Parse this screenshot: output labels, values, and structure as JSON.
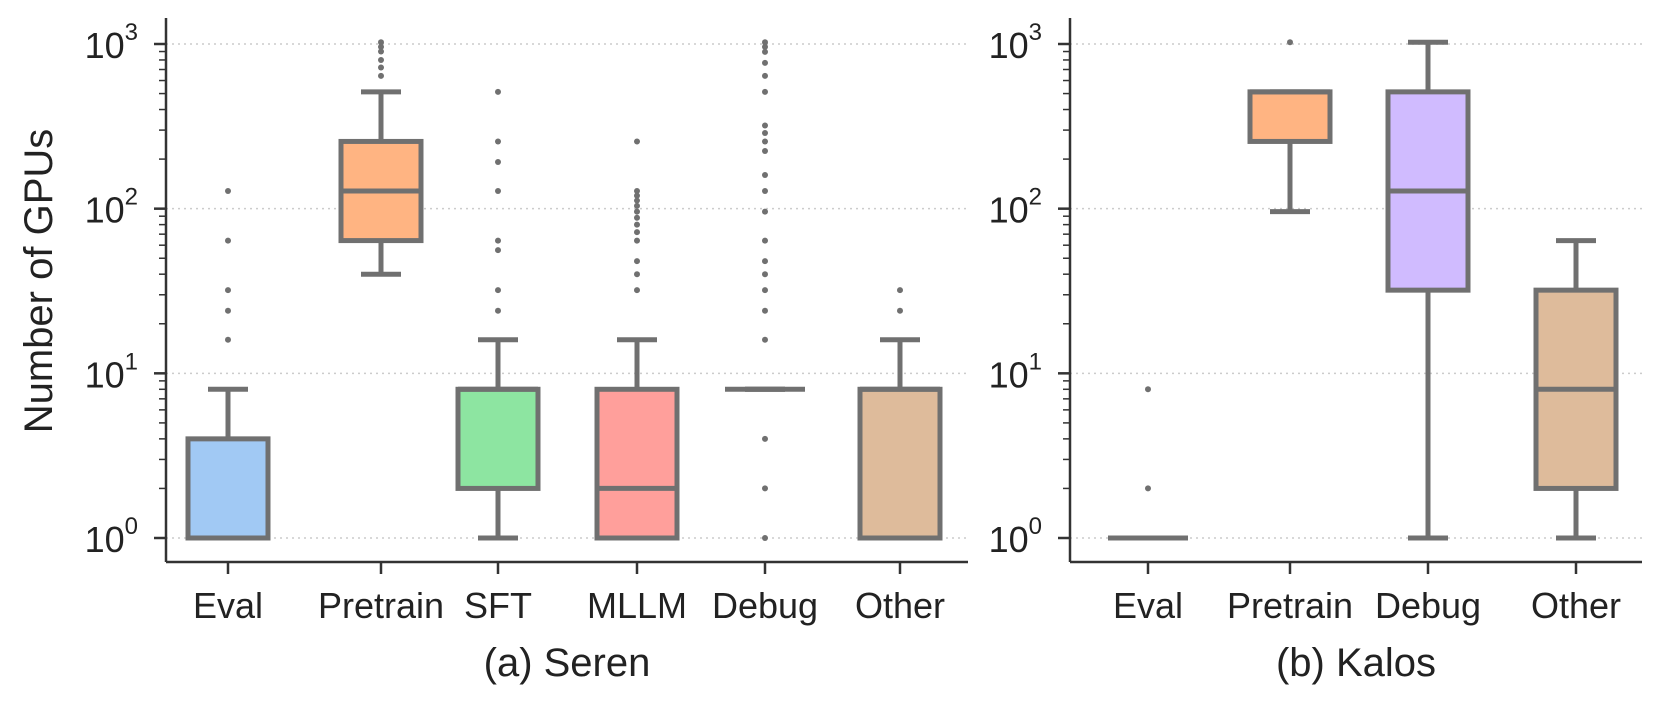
{
  "figure": {
    "ylabel": "Number of GPUs",
    "tick_labels": [
      {
        "base": "10",
        "exp": "0"
      },
      {
        "base": "10",
        "exp": "1"
      },
      {
        "base": "10",
        "exp": "2"
      },
      {
        "base": "10",
        "exp": "3"
      }
    ]
  },
  "chart_data": [
    {
      "type": "box",
      "title": "(a) Seren",
      "yscale": "log",
      "ylim": [
        0.8,
        1400
      ],
      "grid": "y-dotted",
      "ylabel": "Number of GPUs",
      "boxes": [
        {
          "category": "Eval",
          "color": "#a1c9f4",
          "q1": 1,
          "median": 1,
          "q3": 4,
          "whisker_low": 1,
          "whisker_high": 8,
          "outliers": [
            16,
            24,
            32,
            64,
            128
          ]
        },
        {
          "category": "Pretrain",
          "color": "#ffb482",
          "q1": 64,
          "median": 128,
          "q3": 256,
          "whisker_low": 40,
          "whisker_high": 512,
          "outliers": [
            640,
            720,
            800,
            900,
            960,
            1024
          ]
        },
        {
          "category": "SFT",
          "color": "#8de5a1",
          "q1": 2,
          "median": 8,
          "q3": 8,
          "whisker_low": 1,
          "whisker_high": 16,
          "outliers": [
            24,
            32,
            56,
            64,
            128,
            192,
            256,
            512
          ]
        },
        {
          "category": "MLLM",
          "color": "#ff9f9b",
          "q1": 1,
          "median": 2,
          "q3": 8,
          "whisker_low": 1,
          "whisker_high": 16,
          "outliers": [
            32,
            40,
            48,
            64,
            72,
            80,
            88,
            96,
            104,
            112,
            120,
            128,
            256
          ]
        },
        {
          "category": "Debug",
          "color": "#d0bbff",
          "q1": 8,
          "median": 8,
          "q3": 8,
          "whisker_low": 8,
          "whisker_high": 8,
          "outliers": [
            1,
            2,
            4,
            16,
            24,
            32,
            40,
            48,
            64,
            96,
            128,
            160,
            224,
            256,
            288,
            320,
            512,
            640,
            768,
            896,
            960,
            1024
          ]
        },
        {
          "category": "Other",
          "color": "#debb9b",
          "q1": 1,
          "median": 8,
          "q3": 8,
          "whisker_low": 1,
          "whisker_high": 16,
          "outliers": [
            24,
            32
          ]
        }
      ]
    },
    {
      "type": "box",
      "title": "(b) Kalos",
      "yscale": "log",
      "ylim": [
        0.8,
        1400
      ],
      "grid": "y-dotted",
      "boxes": [
        {
          "category": "Eval",
          "color": "#a1c9f4",
          "q1": 1,
          "median": 1,
          "q3": 1,
          "whisker_low": 1,
          "whisker_high": 1,
          "outliers": [
            2,
            8
          ]
        },
        {
          "category": "Pretrain",
          "color": "#ffb482",
          "q1": 256,
          "median": 512,
          "q3": 512,
          "whisker_low": 96,
          "whisker_high": 512,
          "outliers": [
            1024
          ]
        },
        {
          "category": "Debug",
          "color": "#d0bbff",
          "q1": 32,
          "median": 128,
          "q3": 512,
          "whisker_low": 1,
          "whisker_high": 1024,
          "outliers": []
        },
        {
          "category": "Other",
          "color": "#debb9b",
          "q1": 2,
          "median": 8,
          "q3": 32,
          "whisker_low": 1,
          "whisker_high": 64,
          "outliers": []
        }
      ]
    }
  ]
}
